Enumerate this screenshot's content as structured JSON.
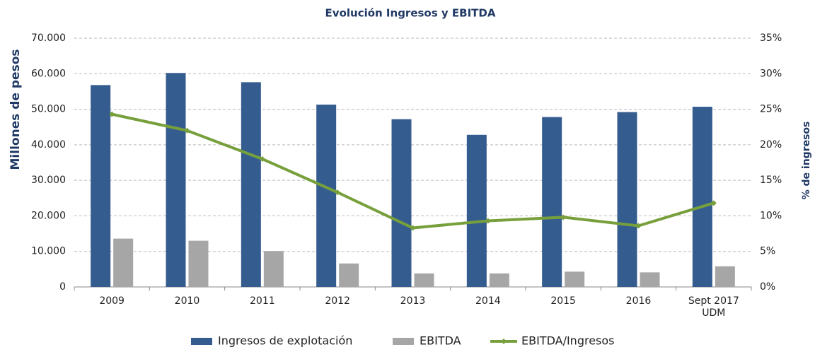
{
  "chart_data": {
    "type": "bar",
    "title": "Evolución Ingresos y EBITDA",
    "y_label": "Millones de pesos",
    "y2_label": "% de ingresos",
    "categories": [
      "2009",
      "2010",
      "2011",
      "2012",
      "2013",
      "2014",
      "2015",
      "2016",
      "Sept 2017\nUDM"
    ],
    "series": [
      {
        "name": "Ingresos de explotación",
        "color": "#345c8f",
        "type": "bar",
        "values": [
          56800,
          60200,
          57600,
          51300,
          47200,
          42800,
          47800,
          49200,
          50700
        ]
      },
      {
        "name": "EBITDA",
        "color": "#a6a6a6",
        "type": "bar",
        "values": [
          13600,
          13000,
          10100,
          6600,
          3800,
          3800,
          4300,
          4100,
          5800
        ]
      },
      {
        "name": "EBITDA/Ingresos",
        "color": "#77a03c",
        "type": "line",
        "axis": "y2",
        "values": [
          24.3,
          22.0,
          18.0,
          13.3,
          8.3,
          9.3,
          9.8,
          8.6,
          11.8
        ]
      }
    ],
    "ylim": [
      0,
      70000
    ],
    "yticks": [
      0,
      {
        "value": 10000,
        "label": "10.000"
      },
      {
        "value": 20000,
        "label": "20.000"
      },
      {
        "value": 30000,
        "label": "30.000"
      },
      {
        "value": 40000,
        "label": "40.000"
      },
      {
        "value": 50000,
        "label": "50.000"
      },
      {
        "value": 60000,
        "label": "60.000"
      },
      {
        "value": 70000,
        "label": "70.000"
      }
    ],
    "y2lim": [
      0,
      35
    ],
    "y2ticks": [
      {
        "value": 0,
        "label": "0%"
      },
      {
        "value": 5,
        "label": "5%"
      },
      {
        "value": 10,
        "label": "10%"
      },
      {
        "value": 15,
        "label": "15%"
      },
      {
        "value": 20,
        "label": "20%"
      },
      {
        "value": 25,
        "label": "25%"
      },
      {
        "value": 30,
        "label": "30%"
      },
      {
        "value": 35,
        "label": "35%"
      }
    ],
    "grid": true,
    "legend": "bottom"
  }
}
